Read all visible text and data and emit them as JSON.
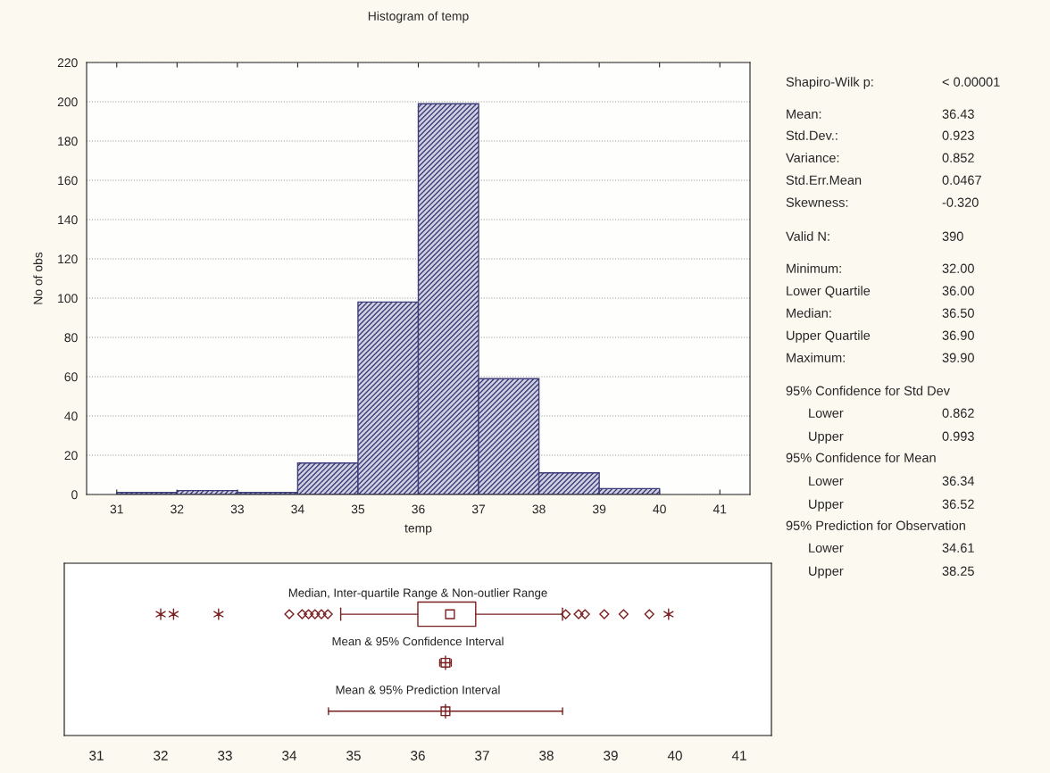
{
  "chart_data": [
    {
      "type": "histogram",
      "title": "Histogram of temp",
      "xlabel": "temp",
      "ylabel": "No of obs",
      "color": "#3c3c78",
      "bins": [
        31,
        32,
        33,
        34,
        35,
        36,
        37,
        38,
        39,
        40
      ],
      "values": [
        1,
        2,
        1,
        16,
        98,
        199,
        59,
        11,
        3
      ],
      "xlim": [
        30.5,
        41.5
      ],
      "xticks": [
        31,
        32,
        33,
        34,
        35,
        36,
        37,
        38,
        39,
        40,
        41
      ],
      "ylim": [
        0,
        220
      ],
      "yticks": [
        0,
        20,
        40,
        60,
        80,
        100,
        120,
        140,
        160,
        180,
        200,
        220
      ],
      "grid": "y"
    },
    {
      "type": "box",
      "orientation": "horizontal",
      "categories": [
        "Median, Inter-quartile Range & Non-outlier Range",
        "Mean & 95% Confidence Interval",
        "Mean & 95% Prediction Interval"
      ],
      "xlim": [
        30.5,
        41.5
      ],
      "xticks": [
        31,
        32,
        33,
        34,
        35,
        36,
        37,
        38,
        39,
        40,
        41
      ],
      "series": [
        {
          "type": "box",
          "color": "#7a1f1f",
          "boxes": [
            {
              "low": 34.8,
              "q1": 36.0,
              "median": 36.5,
              "q3": 36.9,
              "high": 38.25,
              "outliers": [
                34.0,
                34.2,
                34.3,
                34.4,
                34.5,
                34.6,
                38.3,
                38.5,
                38.6,
                38.9,
                39.2,
                39.6
              ]
            },
            {
              "low": 36.34,
              "q1": 36.43,
              "median": 36.43,
              "q3": 36.43,
              "high": 36.52,
              "mean": 36.43
            },
            {
              "low": 34.61,
              "q1": 36.43,
              "median": 36.43,
              "q3": 36.43,
              "high": 38.25,
              "mean": 36.43
            }
          ]
        },
        {
          "type": "scatter",
          "color": "#7a1f1f",
          "marker": "cross",
          "x": [
            "Median, Inter-quartile Range & Non-outlier Range",
            "Median, Inter-quartile Range & Non-outlier Range",
            "Median, Inter-quartile Range & Non-outlier Range",
            "Median, Inter-quartile Range & Non-outlier Range"
          ],
          "values": [
            32.0,
            32.2,
            32.9,
            39.9
          ]
        }
      ]
    },
    {
      "type": "other",
      "annotations": [
        "Shapiro-Wilk p:",
        "< 0.00001",
        "Mean:",
        "36.43",
        "Std.Dev.:",
        "0.923",
        "Variance:",
        "0.852",
        "Std.Err.Mean",
        "0.0467",
        "Skewness:",
        "-0.320",
        "Valid N:",
        "390",
        "Minimum:",
        "32.00",
        "Lower Quartile",
        "36.00",
        "Median:",
        "36.50",
        "Upper Quartile",
        "36.90",
        "Maximum:",
        "39.90",
        "95% Confidence for Std Dev",
        "Lower",
        "0.862",
        "Upper",
        "0.993",
        "95% Confidence for Mean",
        "Lower",
        "36.34",
        "Upper",
        "36.52",
        "95% Prediction for Observation",
        "Lower",
        "34.61",
        "Upper",
        "38.25"
      ]
    }
  ]
}
